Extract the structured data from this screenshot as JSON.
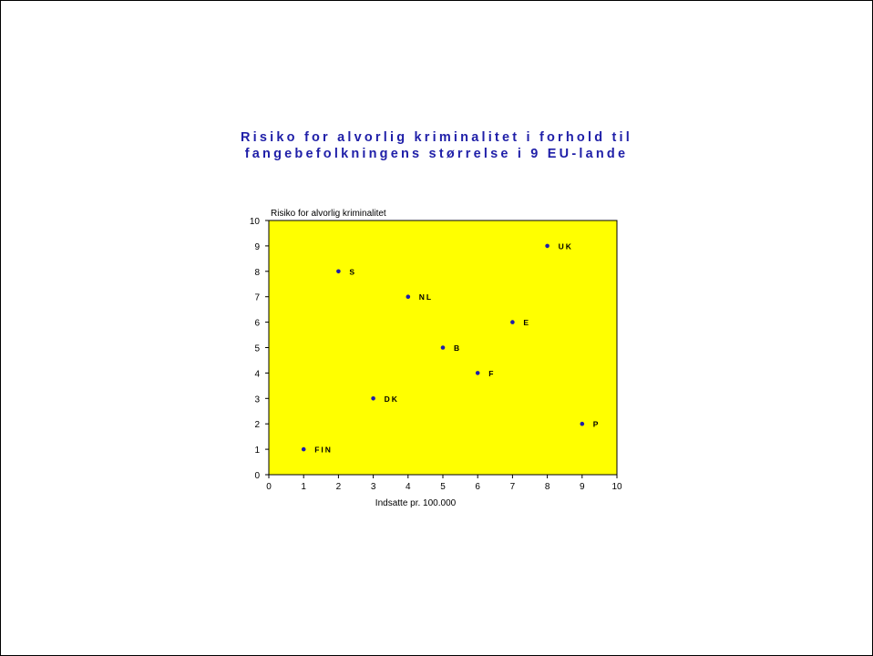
{
  "chart_data": {
    "type": "scatter",
    "title_lines": [
      "Risiko for alvorlig kriminalitet i forhold til",
      "fangebefolkningens størrelse i 9 EU-lande"
    ],
    "xlabel": "Indsatte pr. 100.000",
    "ylabel": "Risiko for alvorlig kriminalitet",
    "xlim": [
      0,
      10
    ],
    "ylim": [
      0,
      10
    ],
    "xticks": [
      "0",
      "1",
      "2",
      "3",
      "4",
      "5",
      "6",
      "7",
      "8",
      "9",
      "10"
    ],
    "yticks": [
      "0",
      "1",
      "2",
      "3",
      "4",
      "5",
      "6",
      "7",
      "8",
      "9",
      "10"
    ],
    "grid": false,
    "legend": "none",
    "plot_background": "#ffff00",
    "marker_color": "#1f1fa8",
    "points": [
      {
        "label": "FIN",
        "x": 1,
        "y": 1
      },
      {
        "label": "S",
        "x": 2,
        "y": 8
      },
      {
        "label": "DK",
        "x": 3,
        "y": 3
      },
      {
        "label": "NL",
        "x": 4,
        "y": 7
      },
      {
        "label": "B",
        "x": 5,
        "y": 5
      },
      {
        "label": "F",
        "x": 6,
        "y": 4
      },
      {
        "label": "E",
        "x": 7,
        "y": 6
      },
      {
        "label": "UK",
        "x": 8,
        "y": 9
      },
      {
        "label": "P",
        "x": 9,
        "y": 2
      }
    ]
  }
}
